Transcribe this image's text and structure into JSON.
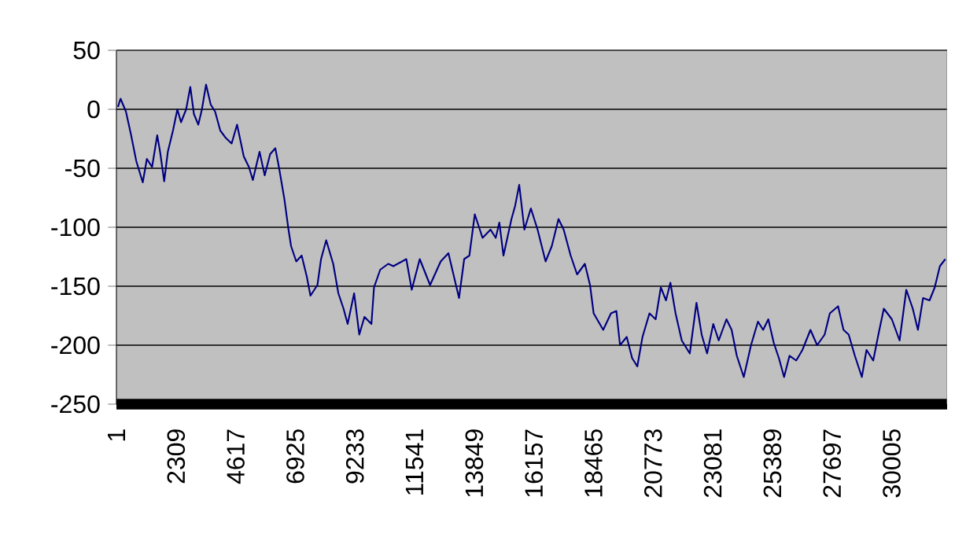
{
  "chart_data": {
    "type": "line",
    "color": "#000080",
    "grid": "y",
    "marker": "none",
    "line_style": "solid",
    "xlim": [
      1,
      32150
    ],
    "ylim": [
      -250,
      50
    ],
    "xticks": [
      1,
      2309,
      4617,
      6925,
      9233,
      11541,
      13849,
      16157,
      18465,
      20773,
      23081,
      25389,
      27697,
      30005
    ],
    "yticks": [
      -250,
      -200,
      -150,
      -100,
      -50,
      0,
      50
    ],
    "x": [
      60,
      160,
      370,
      570,
      770,
      1020,
      1180,
      1380,
      1580,
      1690,
      1850,
      1990,
      2190,
      2360,
      2500,
      2700,
      2860,
      3000,
      3170,
      3310,
      3470,
      3650,
      3820,
      4020,
      4220,
      4460,
      4670,
      4930,
      5130,
      5280,
      5540,
      5740,
      5950,
      6150,
      6290,
      6500,
      6660,
      6760,
      6960,
      7170,
      7370,
      7510,
      7780,
      7920,
      8120,
      8390,
      8590,
      8790,
      8950,
      9200,
      9400,
      9600,
      9870,
      9970,
      10210,
      10520,
      10720,
      11220,
      11430,
      11740,
      12140,
      12550,
      12850,
      13260,
      13460,
      13660,
      13870,
      14170,
      14480,
      14680,
      14820,
      14980,
      15290,
      15430,
      15590,
      15790,
      16040,
      16300,
      16610,
      16850,
      17110,
      17310,
      17580,
      17830,
      18130,
      18330,
      18470,
      18840,
      19140,
      19350,
      19490,
      19750,
      19960,
      20160,
      20360,
      20630,
      20870,
      21070,
      21270,
      21440,
      21640,
      21880,
      22190,
      22450,
      22650,
      22860,
      23100,
      23310,
      23610,
      23810,
      24010,
      24280,
      24560,
      24830,
      25030,
      25230,
      25440,
      25640,
      25840,
      26050,
      26310,
      26550,
      26860,
      27120,
      27410,
      27610,
      27930,
      28140,
      28340,
      28580,
      28850,
      29030,
      29290,
      29490,
      29700,
      30010,
      30310,
      30570,
      30820,
      31020,
      31220,
      31470,
      31670,
      31870,
      32080
    ],
    "values": [
      2,
      9,
      -2,
      -22,
      -44,
      -62,
      -42,
      -49,
      -22,
      -36,
      -61,
      -36,
      -18,
      0,
      -11,
      0,
      19,
      -4,
      -13,
      0,
      21,
      4,
      -2,
      -18,
      -24,
      -29,
      -13,
      -40,
      -49,
      -60,
      -36,
      -56,
      -38,
      -33,
      -49,
      -76,
      -102,
      -116,
      -129,
      -124,
      -142,
      -158,
      -149,
      -127,
      -111,
      -131,
      -156,
      -169,
      -182,
      -156,
      -191,
      -176,
      -182,
      -151,
      -136,
      -131,
      -133,
      -127,
      -153,
      -127,
      -149,
      -129,
      -122,
      -160,
      -127,
      -124,
      -89,
      -109,
      -102,
      -109,
      -96,
      -124,
      -93,
      -82,
      -64,
      -102,
      -84,
      -102,
      -129,
      -116,
      -93,
      -102,
      -124,
      -140,
      -131,
      -149,
      -173,
      -187,
      -173,
      -171,
      -200,
      -193,
      -211,
      -218,
      -193,
      -173,
      -178,
      -151,
      -162,
      -147,
      -173,
      -196,
      -207,
      -164,
      -191,
      -207,
      -182,
      -196,
      -178,
      -187,
      -209,
      -227,
      -200,
      -180,
      -187,
      -178,
      -198,
      -211,
      -227,
      -209,
      -213,
      -204,
      -187,
      -200,
      -191,
      -173,
      -167,
      -187,
      -191,
      -209,
      -227,
      -204,
      -213,
      -191,
      -169,
      -178,
      -196,
      -153,
      -169,
      -187,
      -160,
      -162,
      -151,
      -133,
      -127
    ]
  }
}
